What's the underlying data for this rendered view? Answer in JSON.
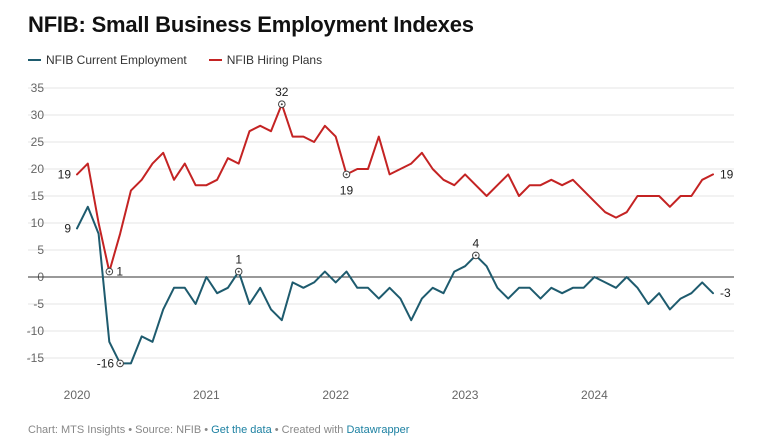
{
  "title": "NFIB: Small Business Employment Indexes",
  "legend": {
    "current_label": "NFIB Current Employment",
    "hiring_label": "NFIB Hiring Plans"
  },
  "footer": {
    "prefix": "Chart: MTS Insights • Source: NFIB • ",
    "get_data": "Get the data",
    "middle": " • Created with ",
    "datawrapper": "Datawrapper"
  },
  "colors": {
    "current": "#1e5b6e",
    "hiring": "#c42323",
    "grid": "#e4e4e4",
    "zero": "#333333",
    "tick": "#666666"
  },
  "chart_data": {
    "type": "line",
    "title": "NFIB: Small Business Employment Indexes",
    "xlabel": "",
    "ylabel": "",
    "ylim": [
      -15,
      35
    ],
    "yticks": [
      35,
      30,
      25,
      20,
      15,
      10,
      5,
      0,
      -5,
      -10,
      -15
    ],
    "xlim": [
      2020.0,
      2024.94
    ],
    "xticks": [
      {
        "value": 2020,
        "label": "2020"
      },
      {
        "value": 2021,
        "label": "2021"
      },
      {
        "value": 2022,
        "label": "2022"
      },
      {
        "value": 2023,
        "label": "2023"
      },
      {
        "value": 2024,
        "label": "2024"
      }
    ],
    "start": 2020.0,
    "step_months": 1,
    "series": [
      {
        "name": "NFIB Current Employment",
        "color": "#1e5b6e",
        "values": [
          9,
          13,
          8,
          -12,
          -16,
          -16,
          -11,
          -12,
          -6,
          -2,
          -2,
          -5,
          0,
          -3,
          -2,
          1,
          -5,
          -2,
          -6,
          -8,
          -1,
          -2,
          -1,
          1,
          -1,
          1,
          -2,
          -2,
          -4,
          -2,
          -4,
          -8,
          -4,
          -2,
          -3,
          1,
          2,
          4,
          2,
          -2,
          -4,
          -2,
          -2,
          -4,
          -2,
          -3,
          -2,
          -2,
          0,
          -1,
          -2,
          0,
          -2,
          -5,
          -3,
          -6,
          -4,
          -3,
          -1,
          -3
        ],
        "annotations": [
          {
            "index": 0,
            "label": "9",
            "pos": "left",
            "marker": false
          },
          {
            "index": 4,
            "label": "-16",
            "pos": "left",
            "marker": true
          },
          {
            "index": 15,
            "label": "1",
            "pos": "above",
            "marker": true
          },
          {
            "index": 37,
            "label": "4",
            "pos": "above",
            "marker": true
          },
          {
            "index": 59,
            "label": "-3",
            "pos": "right",
            "marker": false
          }
        ]
      },
      {
        "name": "NFIB Hiring Plans",
        "color": "#c42323",
        "values": [
          19,
          21,
          10,
          1,
          8,
          16,
          18,
          21,
          23,
          18,
          21,
          17,
          17,
          18,
          22,
          21,
          27,
          28,
          27,
          32,
          26,
          26,
          25,
          28,
          26,
          19,
          20,
          20,
          26,
          19,
          20,
          21,
          23,
          20,
          18,
          17,
          19,
          17,
          15,
          17,
          19,
          15,
          17,
          17,
          18,
          17,
          18,
          16,
          14,
          12,
          11,
          12,
          15,
          15,
          15,
          13,
          15,
          15,
          18,
          19
        ],
        "annotations": [
          {
            "index": 0,
            "label": "19",
            "pos": "left",
            "marker": false
          },
          {
            "index": 3,
            "label": "1",
            "pos": "right",
            "marker": true
          },
          {
            "index": 19,
            "label": "32",
            "pos": "above",
            "marker": true
          },
          {
            "index": 25,
            "label": "19",
            "pos": "below",
            "marker": true
          },
          {
            "index": 59,
            "label": "19",
            "pos": "right",
            "marker": false
          }
        ]
      }
    ]
  }
}
